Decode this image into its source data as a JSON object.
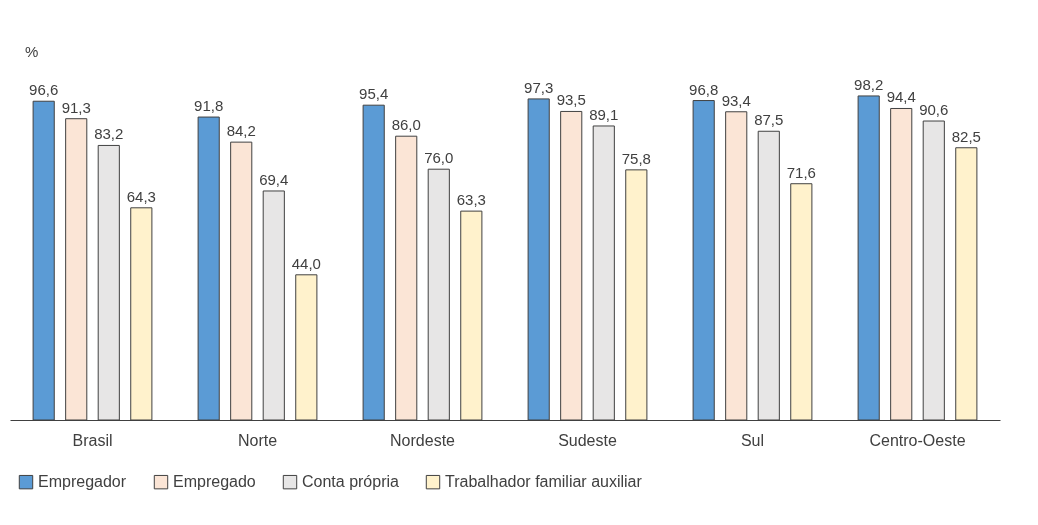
{
  "chart_data": {
    "type": "bar",
    "ylabel": "%",
    "categories": [
      "Brasil",
      "Norte",
      "Nordeste",
      "Sudeste",
      "Sul",
      "Centro-Oeste"
    ],
    "legend": "bottom",
    "grid": false,
    "series": [
      {
        "name": "Empregador",
        "color": "#5b9bd5",
        "values": [
          96.6,
          91.8,
          95.4,
          97.3,
          96.8,
          98.2
        ],
        "value_labels": [
          "96,6",
          "91,8",
          "95,4",
          "97,3",
          "96,8",
          "98,2"
        ]
      },
      {
        "name": "Empregado",
        "color": "#fbe5d6",
        "values": [
          91.3,
          84.2,
          86.0,
          93.5,
          93.4,
          94.4
        ],
        "value_labels": [
          "91,3",
          "84,2",
          "86,0",
          "93,5",
          "93,4",
          "94,4"
        ]
      },
      {
        "name": "Conta própria",
        "color": "#e7e6e6",
        "values": [
          83.2,
          69.4,
          76.0,
          89.1,
          87.5,
          90.6
        ],
        "value_labels": [
          "83,2",
          "69,4",
          "76,0",
          "89,1",
          "87,5",
          "90,6"
        ]
      },
      {
        "name": "Trabalhador familiar auxiliar",
        "color": "#fff2cc",
        "values": [
          64.3,
          44.0,
          63.3,
          75.8,
          71.6,
          82.5
        ],
        "value_labels": [
          "64,3",
          "44,0",
          "63,3",
          "75,8",
          "71,6",
          "82,5"
        ]
      }
    ]
  }
}
